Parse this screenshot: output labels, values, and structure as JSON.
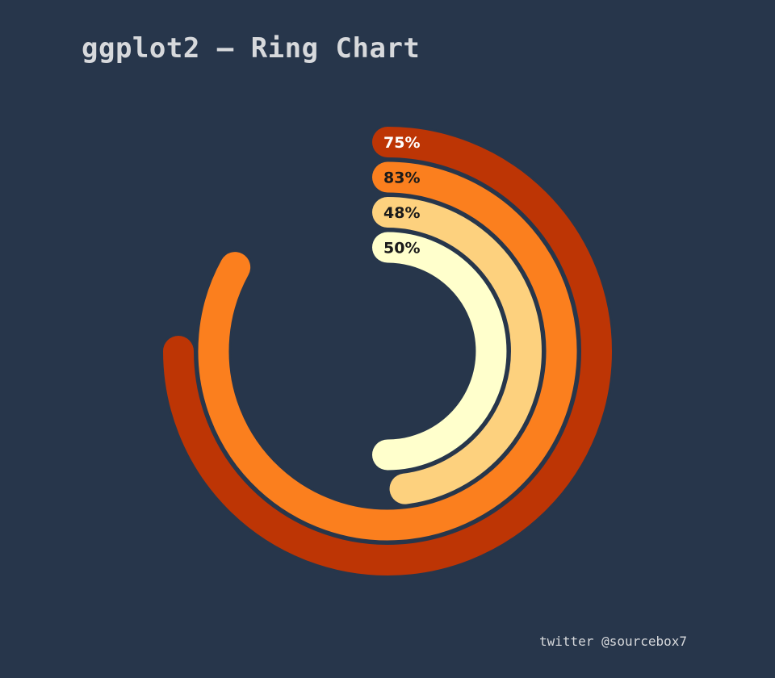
{
  "title": "ggplot2 – Ring Chart",
  "credit": "twitter @sourcebox7",
  "chart_data": {
    "type": "ring",
    "series": [
      {
        "label": "75%",
        "value": 75,
        "color": "#bd3505",
        "label_color": "#ffffff"
      },
      {
        "label": "83%",
        "value": 83,
        "color": "#fb7f1e",
        "label_color": "#1a1a1a"
      },
      {
        "label": "48%",
        "value": 48,
        "color": "#fdd17e",
        "label_color": "#1a1a1a"
      },
      {
        "label": "50%",
        "value": 50,
        "color": "#ffffcc",
        "label_color": "#1a1a1a"
      }
    ]
  },
  "colors": {
    "background": "#27364b",
    "text": "#d7d9dc"
  }
}
